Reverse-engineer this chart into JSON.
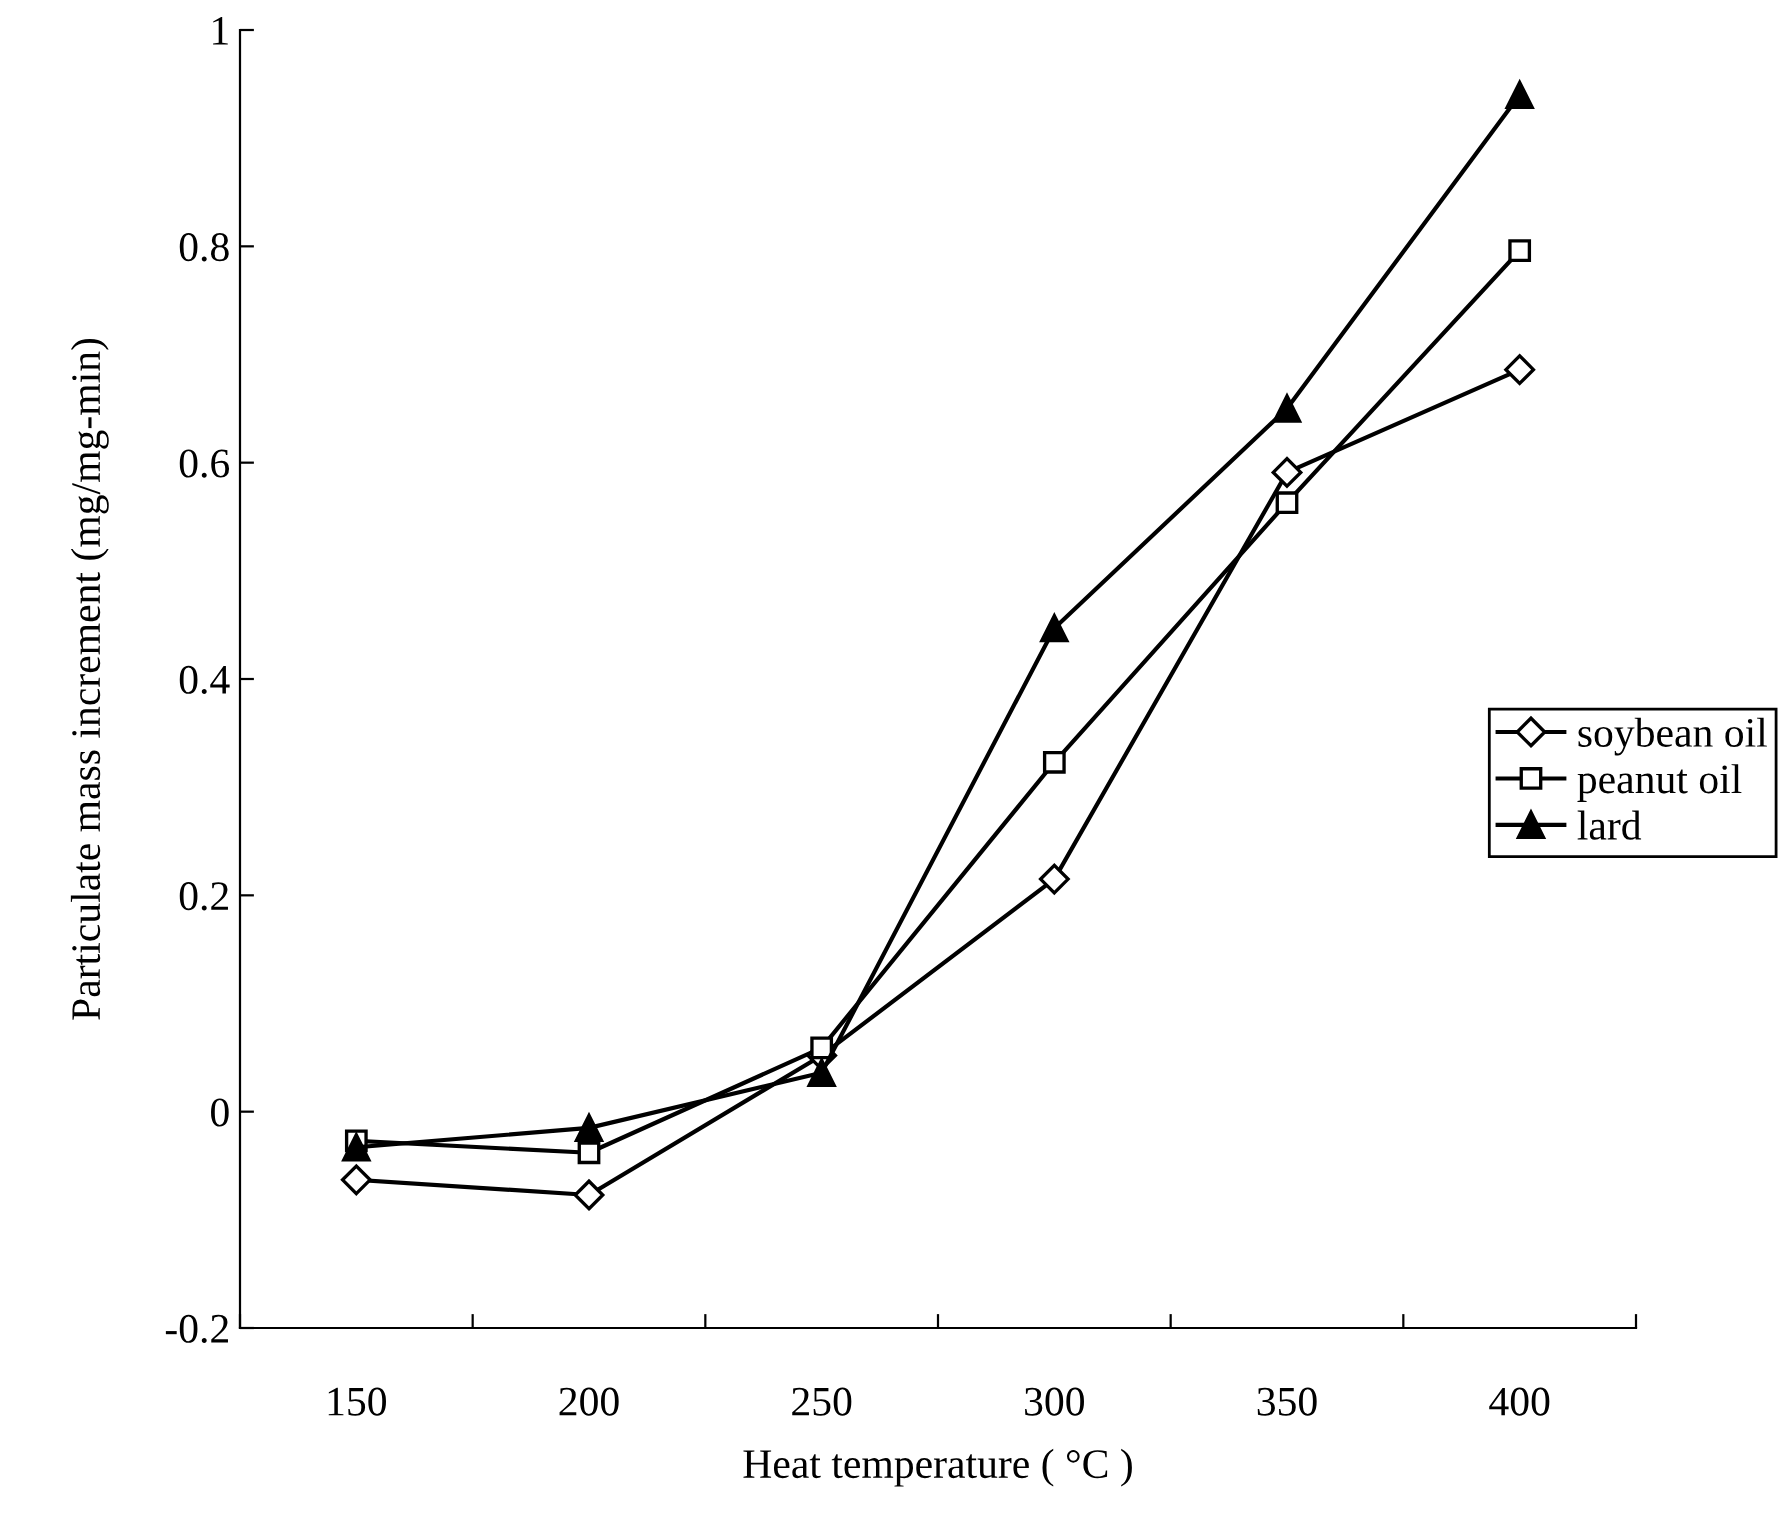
{
  "chart_data": {
    "type": "line",
    "xlabel": "Heat temperature ( °C )",
    "ylabel": "Particulate mass increment (mg/mg-min)",
    "categories": [
      "150",
      "200",
      "250",
      "300",
      "350",
      "400"
    ],
    "series": [
      {
        "name": "soybean oil",
        "color": "#000000",
        "marker": "diamond",
        "values": [
          -0.063,
          -0.077,
          0.052,
          0.215,
          0.591,
          0.686
        ]
      },
      {
        "name": "peanut oil",
        "color": "#000000",
        "marker": "square",
        "values": [
          -0.027,
          -0.038,
          0.059,
          0.323,
          0.563,
          0.796
        ]
      },
      {
        "name": "lard",
        "color": "#000000",
        "marker": "triangle",
        "values": [
          -0.033,
          -0.015,
          0.036,
          0.447,
          0.65,
          0.94
        ]
      }
    ],
    "ylim": [
      -0.2,
      1
    ],
    "yticks": [
      -0.2,
      0,
      0.2,
      0.4,
      0.6,
      0.8,
      1
    ],
    "grid": false,
    "legend": "right",
    "line_style": "solid"
  }
}
